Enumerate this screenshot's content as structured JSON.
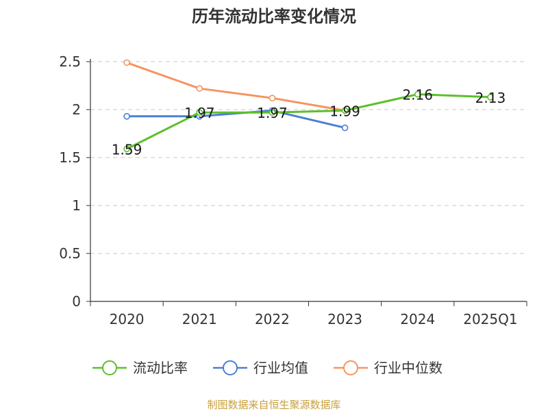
{
  "chart_data": {
    "type": "line",
    "title": "历年流动比率变化情况",
    "categories": [
      "2020",
      "2021",
      "2022",
      "2023",
      "2024",
      "2025Q1"
    ],
    "ylim": [
      0,
      2.5
    ],
    "yticks": [
      "0",
      "0.5",
      "1",
      "1.5",
      "2",
      "2.5"
    ],
    "ytick_values": [
      0,
      0.5,
      1,
      1.5,
      2,
      2.5
    ],
    "grid": true,
    "legend_position": "bottom",
    "series": [
      {
        "name": "流动比率",
        "color": "#5cbf2a",
        "values": [
          1.59,
          1.97,
          1.97,
          1.99,
          2.16,
          2.13
        ],
        "labels": [
          "1.59",
          "1.97",
          "1.97",
          "1.99",
          "2.16",
          "2.13"
        ]
      },
      {
        "name": "行业均值",
        "color": "#4a7fd4",
        "values": [
          1.93,
          1.93,
          1.99,
          1.81,
          null,
          null
        ]
      },
      {
        "name": "行业中位数",
        "color": "#f59460",
        "values": [
          2.49,
          2.22,
          2.12,
          1.99,
          null,
          null
        ]
      }
    ]
  },
  "source_text": "制图数据来自恒生聚源数据库"
}
